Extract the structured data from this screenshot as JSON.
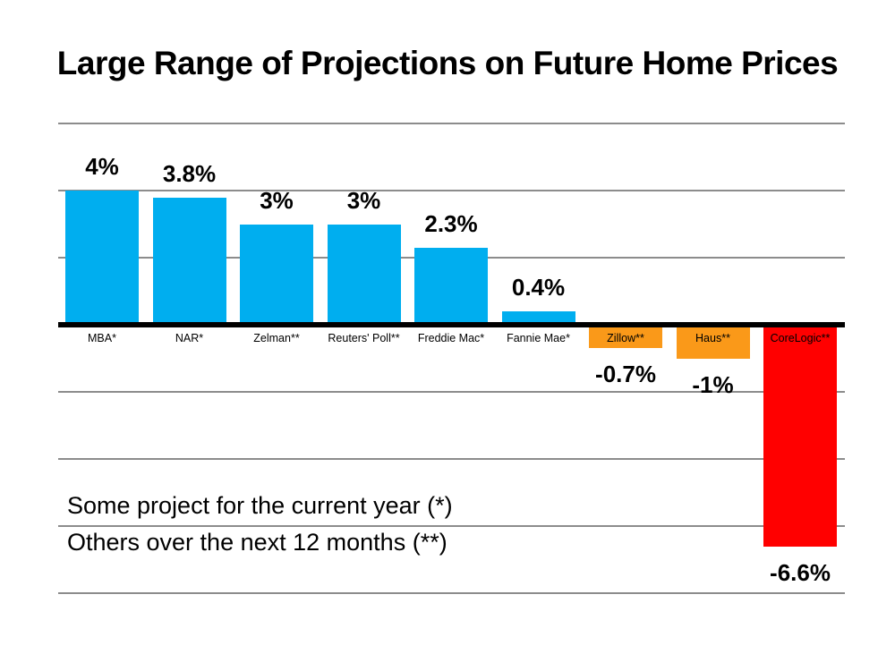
{
  "title": "Large Range of Projections on Future Home Prices",
  "footnote": {
    "line1": "Some project for the current year (*)",
    "line2": "Others over the next 12 months (**)"
  },
  "chart_data": {
    "type": "bar",
    "title": "Large Range of Projections on Future Home Prices",
    "categories": [
      "MBA*",
      "NAR*",
      "Zelman**",
      "Reuters' Poll**",
      "Freddie Mac*",
      "Fannie Mae*",
      "Zillow**",
      "Haus**",
      "CoreLogic**"
    ],
    "values": [
      4,
      3.8,
      3,
      3,
      2.3,
      0.4,
      -0.7,
      -1,
      -6.6
    ],
    "value_labels": [
      "4%",
      "3.8%",
      "3%",
      "3%",
      "2.3%",
      "0.4%",
      "-0.7%",
      "-1%",
      "-6.6%"
    ],
    "bar_colors": [
      "#00AEEF",
      "#00AEEF",
      "#00AEEF",
      "#00AEEF",
      "#00AEEF",
      "#00AEEF",
      "#FA9919",
      "#FA9919",
      "#FF0000"
    ],
    "xlabel": "",
    "ylabel": "",
    "ylim": [
      -8,
      6
    ],
    "gridlines_pct": [
      6,
      4,
      2,
      -2,
      -4,
      -6,
      -8
    ],
    "grid": true,
    "legend": false,
    "annotations": [
      "Some project for the current year (*)",
      "Others over the next 12 months (**)"
    ],
    "colors": {
      "positive_bar": "#00AEEF",
      "negative_moderate_bar": "#FA9919",
      "negative_extreme_bar": "#FF0000",
      "axis": "#000000",
      "gridline": "#8c8c8c",
      "text": "#000000",
      "background": "#ffffff"
    }
  }
}
